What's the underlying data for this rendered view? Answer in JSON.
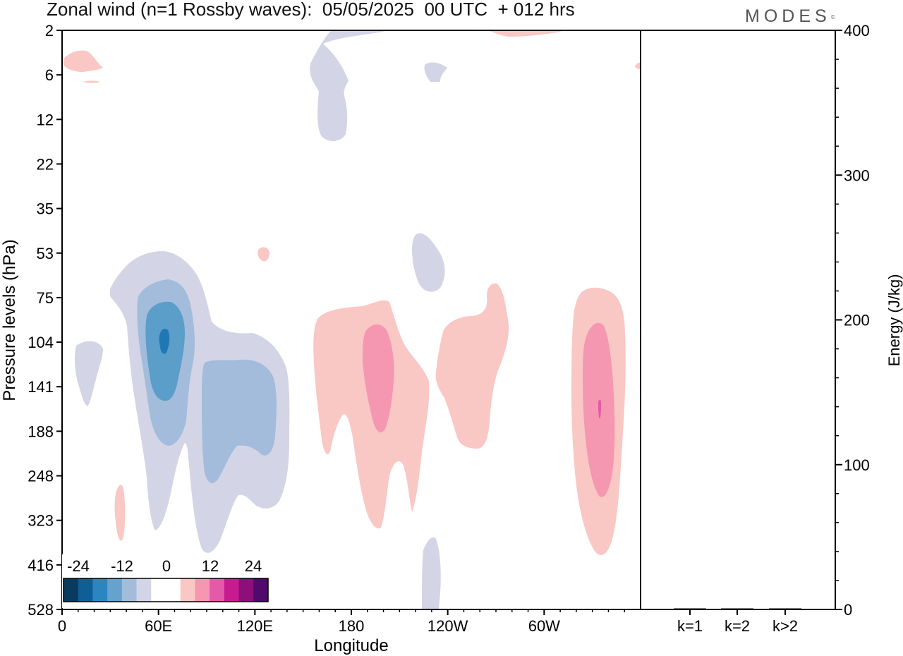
{
  "title": "Zonal wind (n=1 Rossby waves):  05/05/2025  00 UTC  + 012 hrs",
  "logo": "MODES",
  "logo_mark": "©",
  "colors": {
    "axis": "#000000",
    "neg1": "#d3d5e6",
    "neg2": "#a4bcdb",
    "neg3": "#5a9ec9",
    "neg4": "#1f78b4",
    "pos1": "#f9c7c4",
    "pos2": "#f697b1",
    "pos3": "#e25aa8"
  },
  "chart_data": [
    {
      "type": "heatmap",
      "title": "Zonal wind (n=1 Rossby waves):  05/05/2025  00 UTC  + 012 hrs",
      "xlabel": "Longitude",
      "ylabel": "Pressure levels (hPa)",
      "x_ticks": [
        "0",
        "60E",
        "120E",
        "180",
        "120W",
        "60W"
      ],
      "x_tick_values": [
        0,
        60,
        120,
        180,
        240,
        300
      ],
      "xlim": [
        0,
        360
      ],
      "y_ticks": [
        "2",
        "6",
        "12",
        "22",
        "35",
        "53",
        "75",
        "104",
        "141",
        "188",
        "248",
        "323",
        "416",
        "528"
      ],
      "y_scale": "categorical pressure levels, 2 hPa at top, 528 hPa at bottom",
      "colorbar": {
        "tick_labels": [
          "-24",
          "-12",
          "0",
          "12",
          "24"
        ],
        "colors": [
          "#0a3a5c",
          "#0f5f97",
          "#2b86c0",
          "#65a2cd",
          "#a4bcdb",
          "#d3d5e6",
          "#ffffff",
          "#ffffff",
          "#f9c7c4",
          "#f697b1",
          "#e25aa8",
          "#c71c8f",
          "#8d0f7a",
          "#4f0a6b"
        ]
      },
      "features": [
        {
          "sign": "negative",
          "lon_center": 60,
          "level": "104",
          "peak_level": "< -18"
        },
        {
          "sign": "negative",
          "lon_center": 100,
          "level": "141-248",
          "peak_level": "-6 to -12"
        },
        {
          "sign": "positive",
          "lon_center": 195,
          "level": "141",
          "peak_level": "6 to 12"
        },
        {
          "sign": "positive",
          "lon_center": 265,
          "level": "75-188",
          "peak_level": "0 to 6"
        },
        {
          "sign": "positive",
          "lon_center": 335,
          "level": "141",
          "peak_level": "12 to 18"
        },
        {
          "sign": "negative",
          "lon_center": 175,
          "level": "2-12",
          "peak_level": "0 to -6"
        }
      ]
    },
    {
      "type": "bar",
      "categories": [
        "k=1",
        "k=2",
        "k>2"
      ],
      "values": [
        0.5,
        0,
        0.2
      ],
      "ylabel": "Energy (J/kg)",
      "ylim": [
        0,
        400
      ],
      "y_ticks": [
        "0",
        "100",
        "200",
        "300",
        "400"
      ]
    }
  ]
}
